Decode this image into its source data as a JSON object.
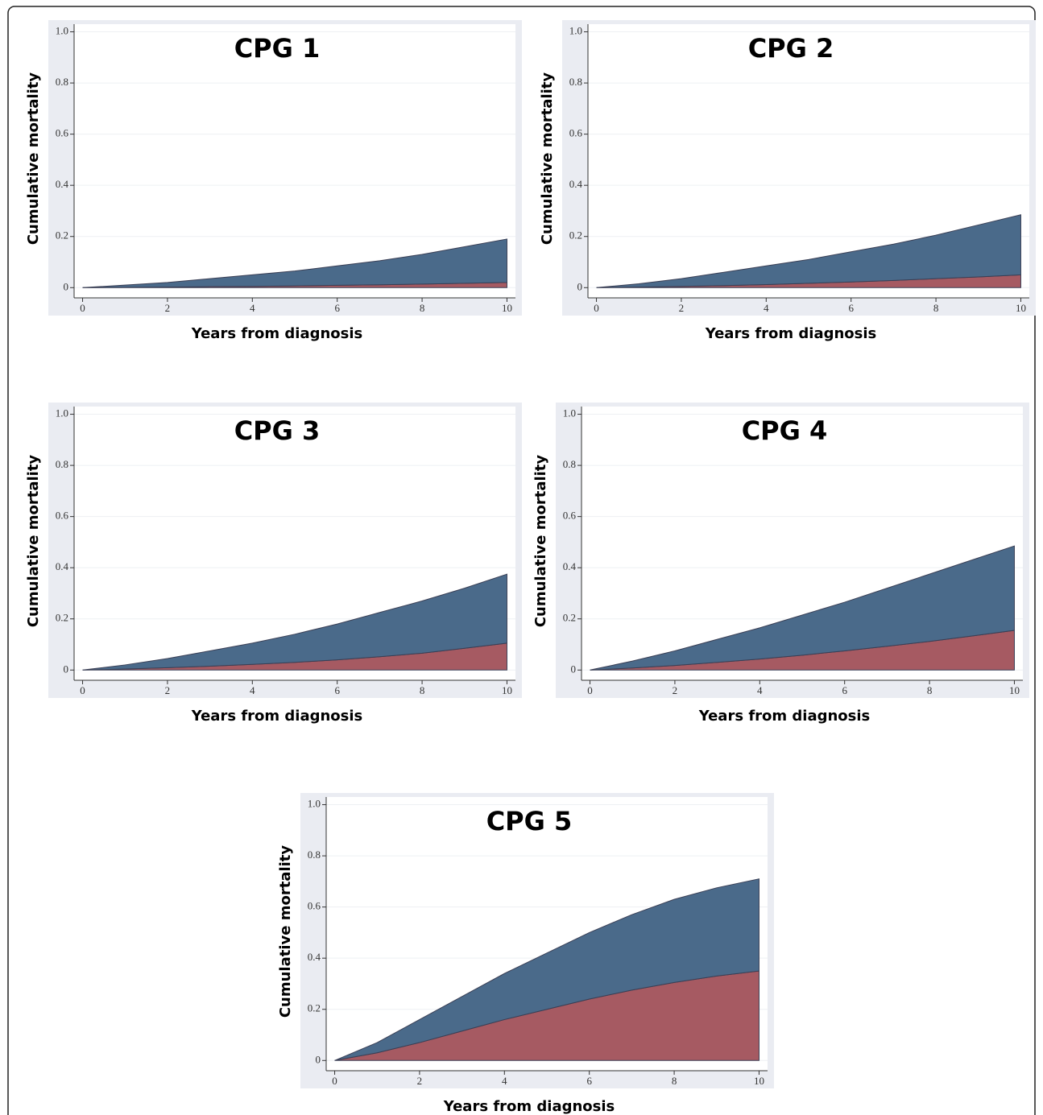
{
  "chart_data": [
    {
      "type": "area",
      "title": "CPG 1",
      "xlabel": "Years from diagnosis",
      "ylabel": "Cumulative mortality",
      "x": [
        0,
        1,
        2,
        3,
        4,
        5,
        6,
        7,
        8,
        9,
        10
      ],
      "series": [
        {
          "color": "#a65a62",
          "values": [
            0,
            0.001,
            0.002,
            0.004,
            0.005,
            0.007,
            0.009,
            0.011,
            0.014,
            0.017,
            0.02
          ]
        },
        {
          "color": "#4a6a8a",
          "values": [
            0,
            0.009,
            0.018,
            0.031,
            0.045,
            0.058,
            0.076,
            0.094,
            0.116,
            0.143,
            0.17
          ]
        }
      ],
      "stacked": true,
      "xlim": [
        -0.2,
        10.2
      ],
      "ylim": [
        -0.04,
        1.03
      ],
      "xticks": [
        0,
        2,
        4,
        6,
        8,
        10
      ],
      "yticks": [
        0,
        0.2,
        0.4,
        0.6,
        0.8,
        {
          "value": 1,
          "label": "1.0"
        }
      ],
      "grid": true
    },
    {
      "type": "area",
      "title": "CPG 2",
      "xlabel": "Years from diagnosis",
      "ylabel": "Cumulative mortality",
      "x": [
        0,
        1,
        2,
        3,
        4,
        5,
        6,
        7,
        8,
        9,
        10
      ],
      "series": [
        {
          "color": "#a65a62",
          "values": [
            0,
            0.002,
            0.005,
            0.008,
            0.012,
            0.017,
            0.022,
            0.028,
            0.035,
            0.042,
            0.05
          ]
        },
        {
          "color": "#4a6a8a",
          "values": [
            0,
            0.013,
            0.03,
            0.052,
            0.073,
            0.093,
            0.118,
            0.142,
            0.17,
            0.203,
            0.235
          ]
        }
      ],
      "stacked": true,
      "xlim": [
        -0.2,
        10.2
      ],
      "ylim": [
        -0.04,
        1.03
      ],
      "xticks": [
        0,
        2,
        4,
        6,
        8,
        10
      ],
      "yticks": [
        0,
        0.2,
        0.4,
        0.6,
        0.8,
        {
          "value": 1,
          "label": "1.0"
        }
      ],
      "grid": true
    },
    {
      "type": "area",
      "title": "CPG 3",
      "xlabel": "Years from diagnosis",
      "ylabel": "Cumulative mortality",
      "x": [
        0,
        1,
        2,
        3,
        4,
        5,
        6,
        7,
        8,
        9,
        10
      ],
      "series": [
        {
          "color": "#a65a62",
          "values": [
            0,
            0.004,
            0.009,
            0.015,
            0.022,
            0.03,
            0.04,
            0.052,
            0.066,
            0.085,
            0.105
          ]
        },
        {
          "color": "#4a6a8a",
          "values": [
            0,
            0.016,
            0.036,
            0.06,
            0.083,
            0.11,
            0.14,
            0.173,
            0.204,
            0.235,
            0.27
          ]
        }
      ],
      "stacked": true,
      "xlim": [
        -0.2,
        10.2
      ],
      "ylim": [
        -0.04,
        1.03
      ],
      "xticks": [
        0,
        2,
        4,
        6,
        8,
        10
      ],
      "yticks": [
        0,
        0.2,
        0.4,
        0.6,
        0.8,
        {
          "value": 1,
          "label": "1.0"
        }
      ],
      "grid": true
    },
    {
      "type": "area",
      "title": "CPG 4",
      "xlabel": "Years from diagnosis",
      "ylabel": "Cumulative mortality",
      "x": [
        0,
        1,
        2,
        3,
        4,
        5,
        6,
        7,
        8,
        9,
        10
      ],
      "series": [
        {
          "color": "#a65a62",
          "values": [
            0,
            0.008,
            0.018,
            0.03,
            0.043,
            0.058,
            0.075,
            0.093,
            0.112,
            0.133,
            0.155
          ]
        },
        {
          "color": "#4a6a8a",
          "values": [
            0,
            0.027,
            0.057,
            0.09,
            0.122,
            0.157,
            0.19,
            0.227,
            0.263,
            0.297,
            0.33
          ]
        }
      ],
      "stacked": true,
      "xlim": [
        -0.2,
        10.2
      ],
      "ylim": [
        -0.04,
        1.03
      ],
      "xticks": [
        0,
        2,
        4,
        6,
        8,
        10
      ],
      "yticks": [
        0,
        0.2,
        0.4,
        0.6,
        0.8,
        {
          "value": 1,
          "label": "1.0"
        }
      ],
      "grid": true
    },
    {
      "type": "area",
      "title": "CPG 5",
      "xlabel": "Years from diagnosis",
      "ylabel": "Cumulative mortality",
      "x": [
        0,
        1,
        2,
        3,
        4,
        5,
        6,
        7,
        8,
        9,
        10
      ],
      "series": [
        {
          "color": "#a65a62",
          "values": [
            0,
            0.03,
            0.07,
            0.115,
            0.16,
            0.2,
            0.24,
            0.275,
            0.305,
            0.33,
            0.35
          ]
        },
        {
          "color": "#4a6a8a",
          "values": [
            0,
            0.04,
            0.09,
            0.135,
            0.18,
            0.22,
            0.26,
            0.295,
            0.325,
            0.345,
            0.36
          ]
        }
      ],
      "stacked": true,
      "xlim": [
        -0.2,
        10.2
      ],
      "ylim": [
        -0.04,
        1.03
      ],
      "xticks": [
        0,
        2,
        4,
        6,
        8,
        10
      ],
      "yticks": [
        0,
        0.2,
        0.4,
        0.6,
        0.8,
        {
          "value": 1,
          "label": "1.0"
        }
      ],
      "grid": true
    }
  ]
}
